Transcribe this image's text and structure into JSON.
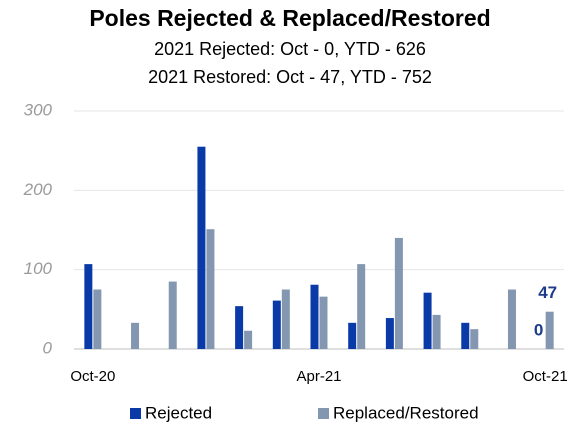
{
  "chart_data": {
    "type": "bar",
    "title": "Poles Rejected & Replaced/Restored",
    "subtitle": [
      "2021 Rejected:  Oct - 0, YTD - 626",
      "2021 Restored:  Oct - 47, YTD - 752"
    ],
    "categories": [
      "Oct-20",
      null,
      null,
      null,
      null,
      null,
      "Apr-21",
      null,
      null,
      null,
      null,
      null,
      "Oct-21"
    ],
    "series": [
      {
        "name": "Rejected",
        "color": "#0A3AA8",
        "values": [
          107,
          0,
          0,
          255,
          54,
          61,
          81,
          33,
          39,
          71,
          33,
          0,
          0
        ],
        "value_labels": [
          null,
          null,
          null,
          null,
          null,
          null,
          null,
          null,
          null,
          null,
          null,
          null,
          "0"
        ]
      },
      {
        "name": "Replaced/Restored",
        "color": "#8497B0",
        "values": [
          75,
          33,
          85,
          151,
          23,
          75,
          66,
          107,
          140,
          43,
          25,
          75,
          47
        ],
        "value_labels": [
          null,
          null,
          null,
          null,
          null,
          null,
          null,
          null,
          null,
          null,
          null,
          null,
          "47"
        ]
      }
    ],
    "ylim": [
      0,
      300
    ],
    "yticks": [
      0,
      100,
      200,
      300
    ],
    "grid": true,
    "legend": "bottom"
  }
}
